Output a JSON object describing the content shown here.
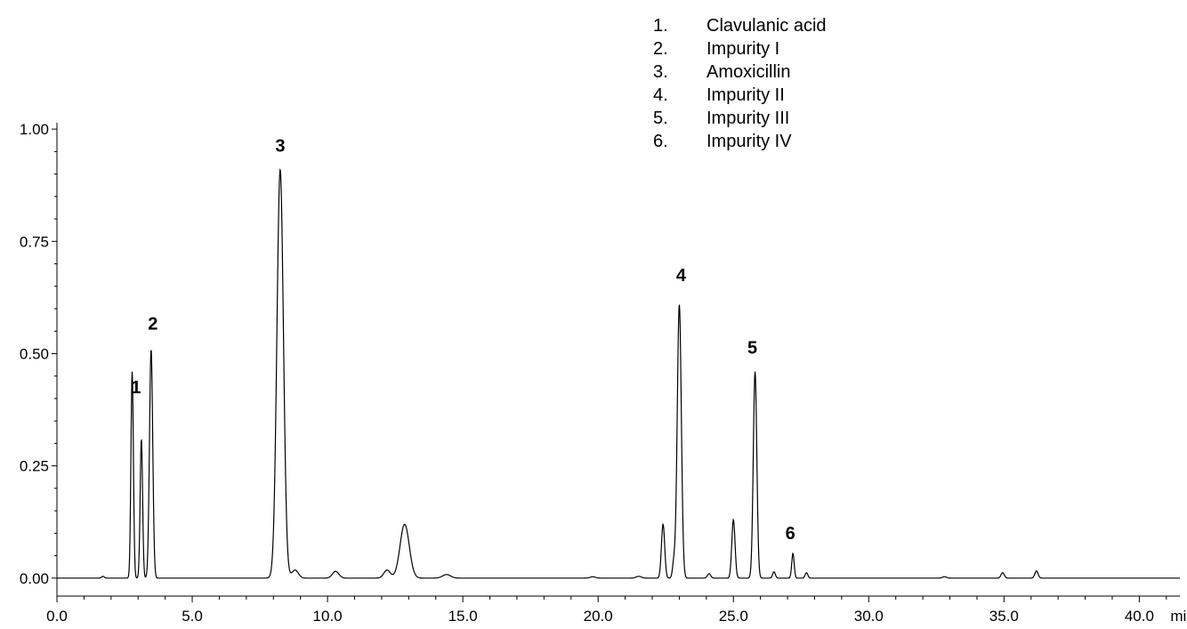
{
  "chart_data": {
    "type": "line",
    "x_unit": "min",
    "xlim": [
      0,
      41.5
    ],
    "ylim": [
      -0.04,
      1.03
    ],
    "x_ticks": [
      {
        "value": 0,
        "label": "0.0"
      },
      {
        "value": 5,
        "label": "5.0"
      },
      {
        "value": 10,
        "label": "10.0"
      },
      {
        "value": 15,
        "label": "15.0"
      },
      {
        "value": 20,
        "label": "20.0"
      },
      {
        "value": 25,
        "label": "25.0"
      },
      {
        "value": 30,
        "label": "30.0"
      },
      {
        "value": 35,
        "label": "35.0"
      },
      {
        "value": 40,
        "label": "40.0"
      }
    ],
    "y_ticks": [
      {
        "value": 0.0,
        "label": "0.00"
      },
      {
        "value": 0.25,
        "label": "0.25"
      },
      {
        "value": 0.5,
        "label": "0.50"
      },
      {
        "value": 0.75,
        "label": "0.75"
      },
      {
        "value": 1.0,
        "label": "1.00"
      }
    ],
    "peaks": [
      {
        "t": 1.7,
        "h": 0.004,
        "w": 0.05
      },
      {
        "t": 2.78,
        "h": 0.46,
        "w": 0.045
      },
      {
        "t": 3.12,
        "h": 0.31,
        "w": 0.045
      },
      {
        "t": 3.48,
        "h": 0.51,
        "w": 0.06
      },
      {
        "t": 8.25,
        "h": 0.91,
        "w": 0.12
      },
      {
        "t": 8.8,
        "h": 0.018,
        "w": 0.12
      },
      {
        "t": 10.3,
        "h": 0.015,
        "w": 0.12
      },
      {
        "t": 12.2,
        "h": 0.018,
        "w": 0.12
      },
      {
        "t": 12.85,
        "h": 0.12,
        "w": 0.17
      },
      {
        "t": 14.4,
        "h": 0.008,
        "w": 0.15
      },
      {
        "t": 19.8,
        "h": 0.003,
        "w": 0.1
      },
      {
        "t": 21.5,
        "h": 0.004,
        "w": 0.1
      },
      {
        "t": 22.4,
        "h": 0.12,
        "w": 0.06
      },
      {
        "t": 22.8,
        "h": 0.035,
        "w": 0.05
      },
      {
        "t": 23.0,
        "h": 0.61,
        "w": 0.075
      },
      {
        "t": 24.1,
        "h": 0.01,
        "w": 0.06
      },
      {
        "t": 25.0,
        "h": 0.13,
        "w": 0.06
      },
      {
        "t": 25.8,
        "h": 0.46,
        "w": 0.065
      },
      {
        "t": 26.5,
        "h": 0.014,
        "w": 0.05
      },
      {
        "t": 27.2,
        "h": 0.055,
        "w": 0.045
      },
      {
        "t": 27.7,
        "h": 0.012,
        "w": 0.05
      },
      {
        "t": 32.8,
        "h": 0.003,
        "w": 0.08
      },
      {
        "t": 34.95,
        "h": 0.012,
        "w": 0.06
      },
      {
        "t": 36.2,
        "h": 0.016,
        "w": 0.06
      }
    ],
    "peak_labels": [
      {
        "num": "1",
        "t": 3.12,
        "y": 0.31
      },
      {
        "num": "2",
        "t": 3.48,
        "y": 0.51
      },
      {
        "num": "3",
        "t": 8.25,
        "y": 0.91
      },
      {
        "num": "4",
        "t": 23.0,
        "y": 0.61
      },
      {
        "num": "5",
        "t": 25.8,
        "y": 0.46
      },
      {
        "num": "6",
        "t": 27.2,
        "y": 0.055
      }
    ],
    "legend": [
      {
        "num": "1.",
        "name": "Clavulanic acid"
      },
      {
        "num": "2.",
        "name": "Impurity I"
      },
      {
        "num": "3.",
        "name": "Amoxicillin"
      },
      {
        "num": "4.",
        "name": "Impurity II"
      },
      {
        "num": "5.",
        "name": "Impurity III"
      },
      {
        "num": "6.",
        "name": "Impurity IV"
      }
    ],
    "legend_position": "top-right",
    "grid": false,
    "line_color": "#000000"
  }
}
